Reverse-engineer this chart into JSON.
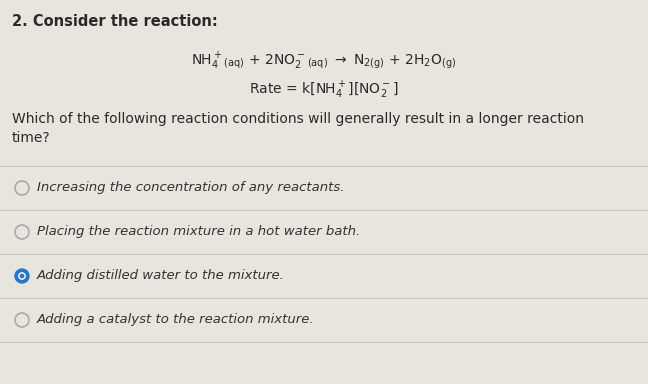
{
  "background_color": "#e8e4de",
  "title_text": "2. Consider the reaction:",
  "question_text": "Which of the following reaction conditions will generally result in a longer reaction\ntime?",
  "options": [
    "Increasing the concentration of any reactants.",
    "Placing the reaction mixture in a hot water bath.",
    "Adding distilled water to the mixture.",
    "Adding a catalyst to the reaction mixture."
  ],
  "selected_option": 2,
  "text_color": "#2a2a2a",
  "option_text_color": "#333333",
  "selected_color": "#2878c8",
  "unselected_edge_color": "#aaaaaa",
  "separator_color": "#c8c4be",
  "font_size_title": 10.5,
  "font_size_eq": 10,
  "font_size_question": 10,
  "font_size_option": 9.5
}
